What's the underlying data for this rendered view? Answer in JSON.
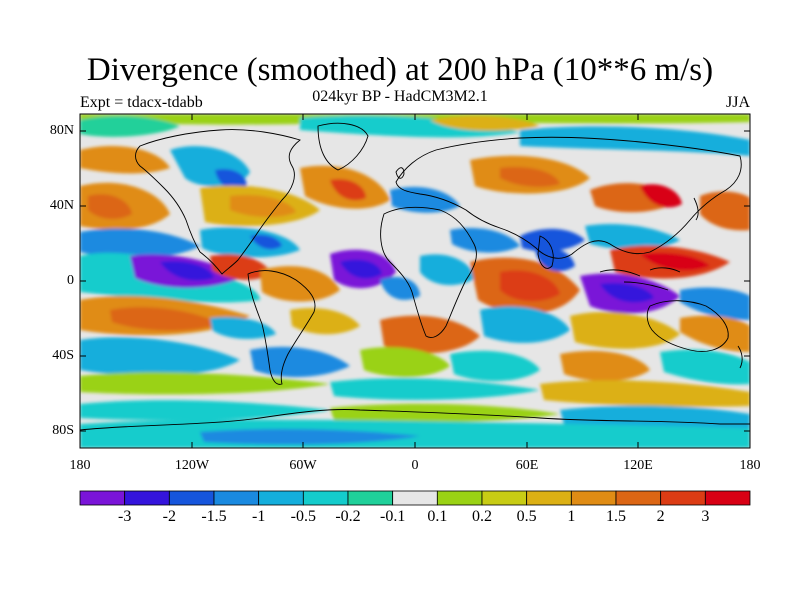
{
  "title": "Divergence (smoothed) at 200 hPa (10**6 m/s)",
  "subtitle": "024kyr BP - HadCM3M2.1",
  "left_label": "Expt = tdacx-tdabb",
  "right_label": "JJA",
  "lat_labels": [
    "80N",
    "40N",
    "0",
    "40S",
    "80S"
  ],
  "lon_labels": [
    "180",
    "120W",
    "60W",
    "0",
    "60E",
    "120E",
    "180"
  ],
  "colorbar": {
    "labels": [
      "-3",
      "-2",
      "-1.5",
      "-1",
      "-0.5",
      "-0.2",
      "-0.1",
      "0.1",
      "0.2",
      "0.5",
      "1",
      "1.5",
      "2",
      "3"
    ],
    "colors": [
      "#7a14d8",
      "#3414dc",
      "#1655dc",
      "#1a8ae0",
      "#14aedc",
      "#14cccc",
      "#20d09a",
      "#e6e6e6",
      "#9ad214",
      "#c8cc14",
      "#dcb014",
      "#e08c14",
      "#dc6614",
      "#dc3c14",
      "#d80014"
    ]
  },
  "map_colors": {
    "neutral": "#e6e6e6",
    "coast": "#000000"
  }
}
